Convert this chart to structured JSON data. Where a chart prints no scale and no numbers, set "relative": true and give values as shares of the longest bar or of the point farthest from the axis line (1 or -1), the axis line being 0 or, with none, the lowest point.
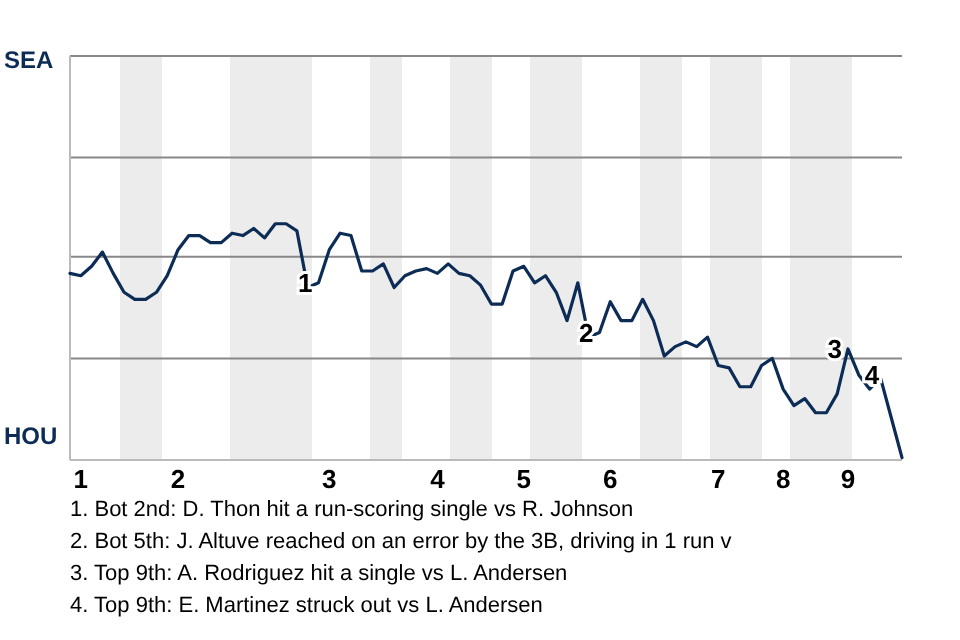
{
  "chart_data": {
    "type": "line",
    "relative": true,
    "categories": [
      null,
      "1",
      null,
      null,
      null,
      null,
      null,
      null,
      null,
      null,
      "2",
      null,
      null,
      null,
      null,
      null,
      null,
      null,
      null,
      null,
      null,
      null,
      null,
      null,
      "3",
      null,
      null,
      null,
      null,
      null,
      null,
      null,
      null,
      null,
      "4",
      null,
      null,
      null,
      null,
      null,
      null,
      null,
      "5",
      null,
      null,
      null,
      null,
      null,
      null,
      null,
      "6",
      null,
      null,
      null,
      null,
      null,
      null,
      null,
      null,
      null,
      "7",
      null,
      null,
      null,
      null,
      null,
      "8",
      null,
      null,
      null,
      null,
      null,
      "9",
      null,
      null,
      null,
      null,
      null
    ],
    "marker": "none",
    "line_style": "solid",
    "ref_lines": [
      {
        "axis": "y",
        "value": 0.43,
        "color": "#888888"
      },
      {
        "axis": "y",
        "value": 0.86,
        "color": "#888888"
      },
      {
        "axis": "y",
        "value": 1.28,
        "color": "#888888"
      },
      {
        "axis": "y",
        "value": 1.71,
        "color": "#888888"
      }
    ],
    "series": [
      {
        "color": "#0c2c56",
        "values": [
          0.79,
          0.78,
          0.82,
          0.88,
          0.79,
          0.71,
          0.68,
          0.68,
          0.71,
          0.78,
          0.89,
          0.95,
          0.95,
          0.92,
          0.92,
          0.96,
          0.95,
          0.98,
          0.94,
          1,
          1,
          0.97,
          0.73,
          0.75,
          0.89,
          0.96,
          0.95,
          0.8,
          0.8,
          0.83,
          0.73,
          0.78,
          0.8,
          0.81,
          0.79,
          0.83,
          0.79,
          0.78,
          0.74,
          0.66,
          0.66,
          0.8,
          0.82,
          0.75,
          0.78,
          0.71,
          0.59,
          0.75,
          0.52,
          0.54,
          0.67,
          0.59,
          0.59,
          0.68,
          0.59,
          0.44,
          0.48,
          0.5,
          0.48,
          0.52,
          0.4,
          0.39,
          0.31,
          0.31,
          0.4,
          0.43,
          0.3,
          0.23,
          0.26,
          0.2,
          0.2,
          0.28,
          0.47,
          0.36,
          0.3,
          0.35,
          0.18,
          0.01
        ]
      }
    ],
    "annotations": [
      "SEA",
      "HOU",
      {
        "text": "1",
        "y": 0.75
      },
      {
        "text": "2",
        "y": 0.54
      },
      {
        "text": "3",
        "y": 0.47
      },
      {
        "text": "4",
        "y": 0.36
      },
      "1. Bot 2nd: D. Thon hit a run-scoring single vs R. Johnson",
      "2. Bot 5th: J. Altuve reached on an error by the 3B, driving in 1 run v",
      "3. Top 9th: A. Rodriguez hit a single vs L. Andersen",
      "4. Top 9th: E. Martinez struck out vs L. Andersen"
    ]
  }
}
